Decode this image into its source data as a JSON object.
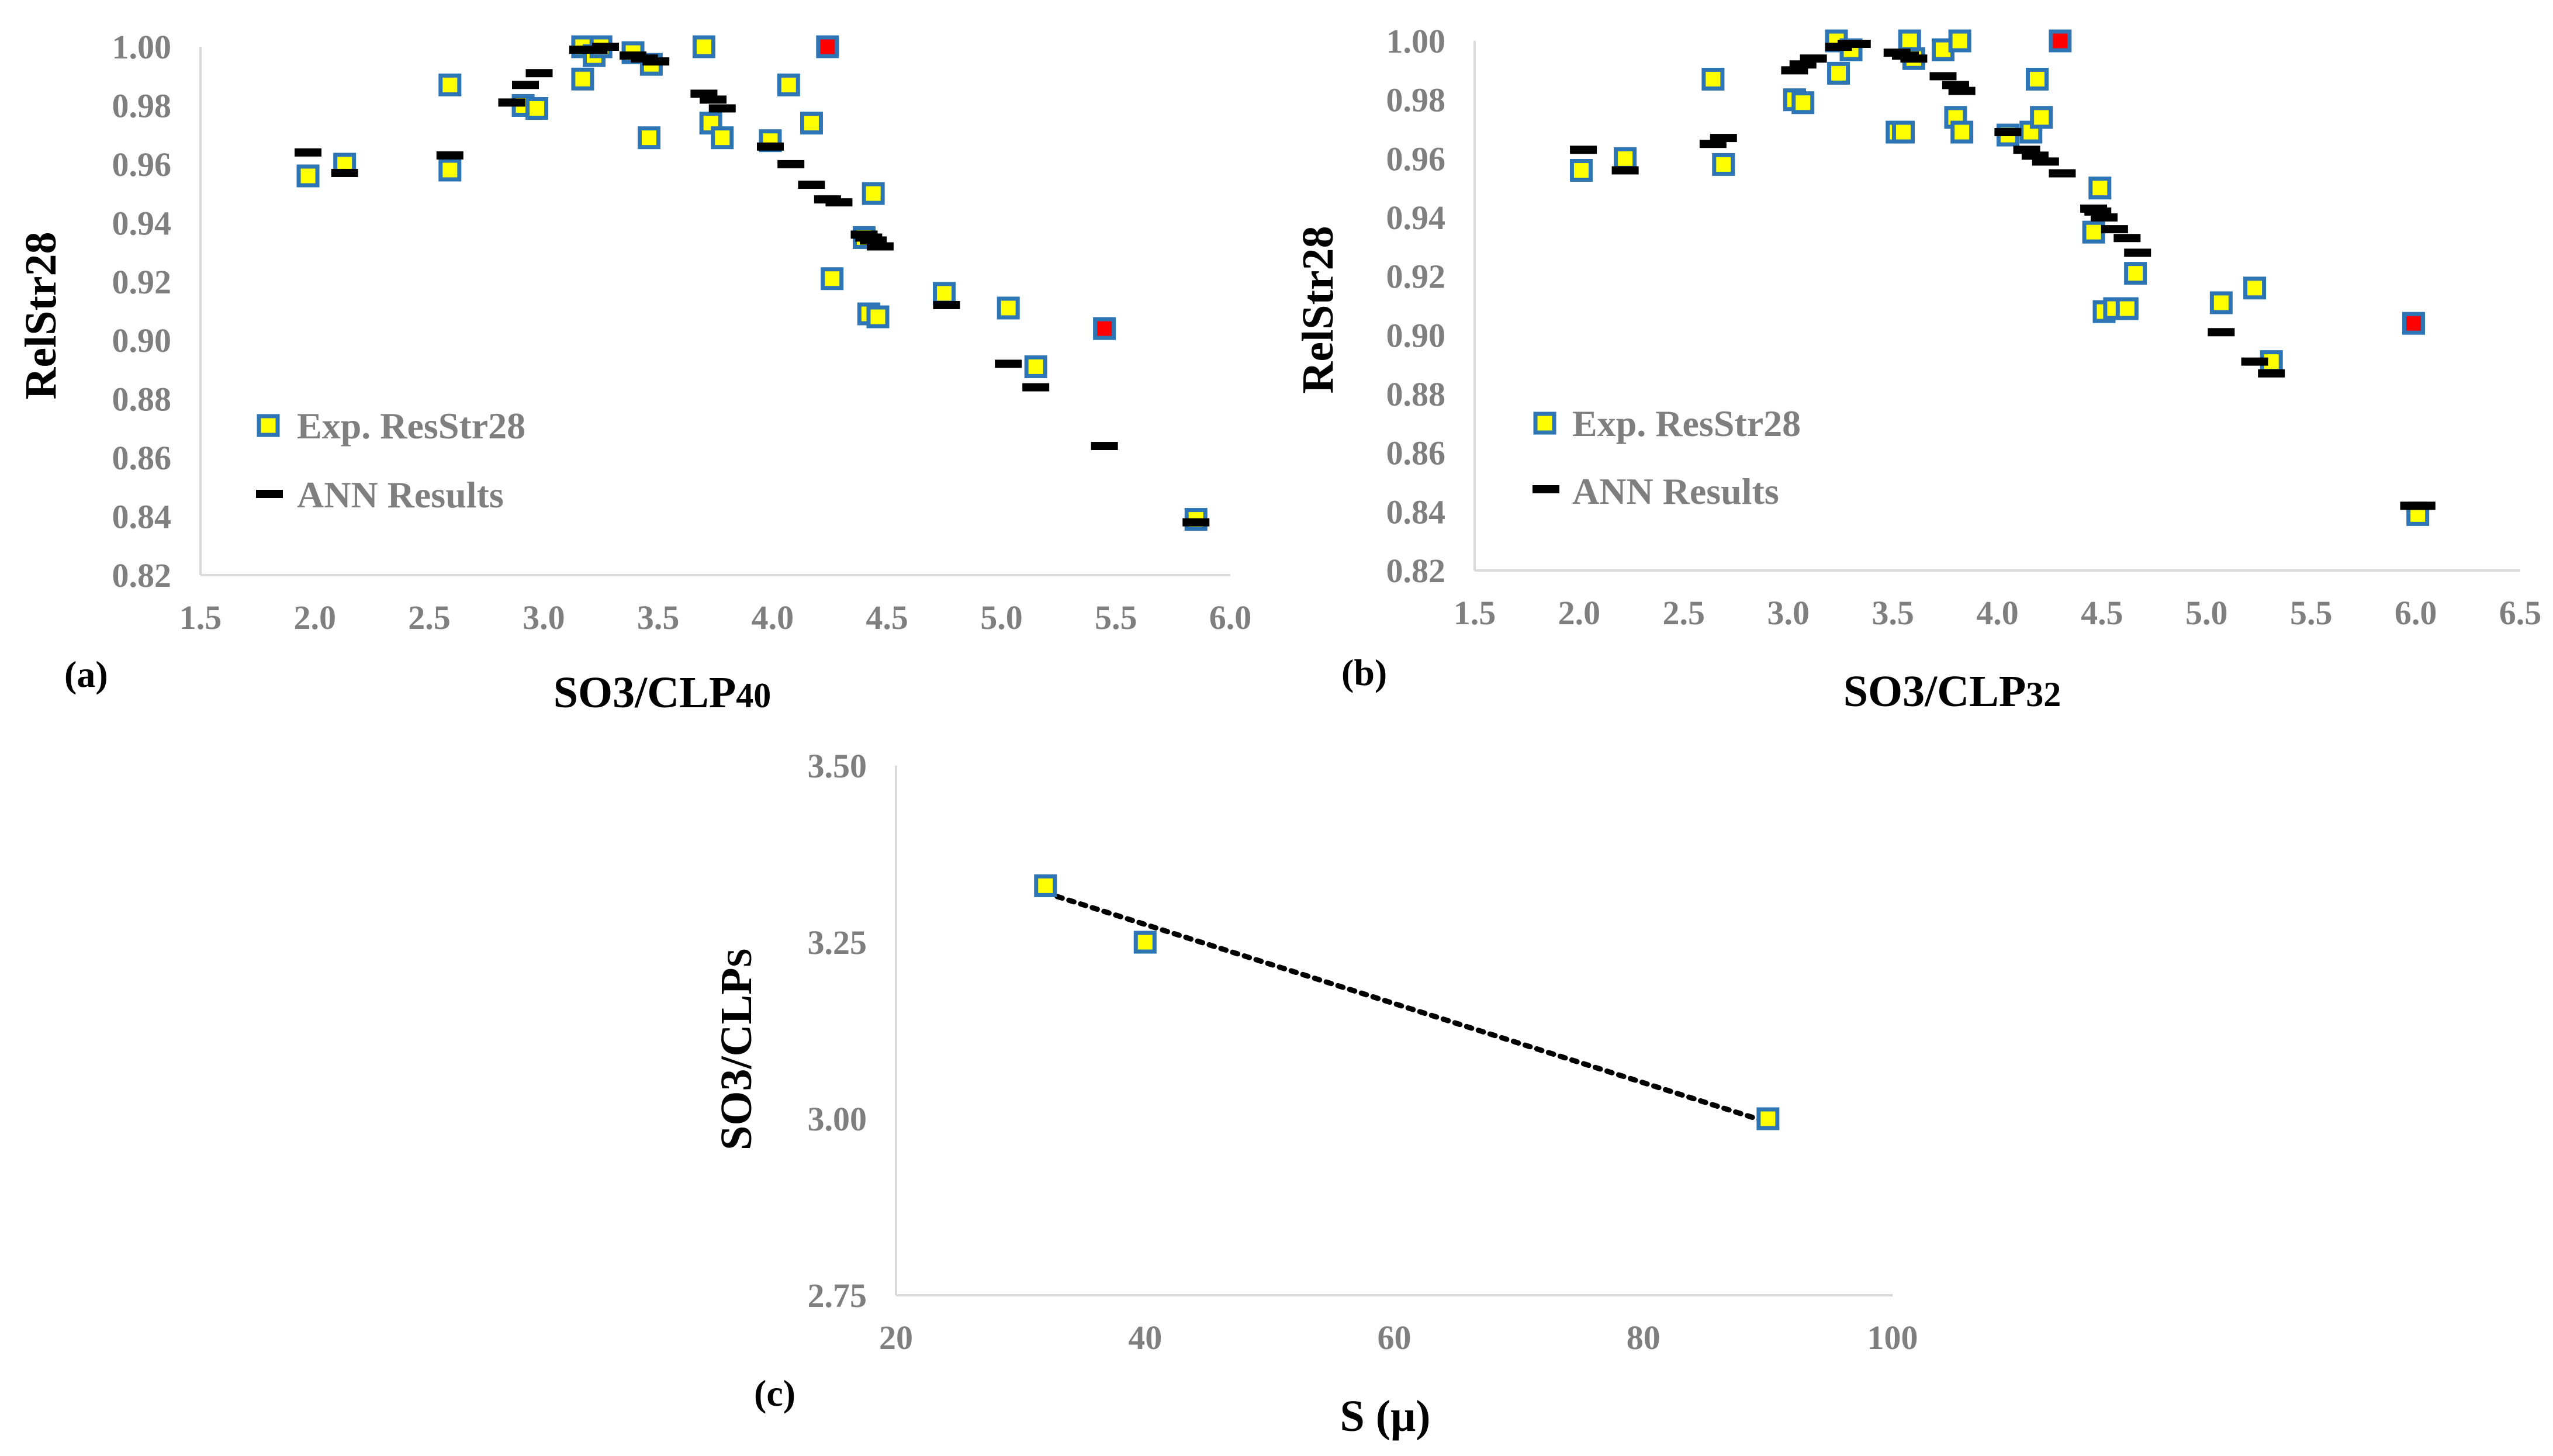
{
  "colors": {
    "marker_fill": "#ffff00",
    "marker_stroke": "#2e75b6",
    "highlight_fill": "#ff0000",
    "ann_color": "#000000",
    "axis_color": "#d9d9d9",
    "tick_color": "#7f7f7f"
  },
  "chart_data": [
    {
      "type": "scatter",
      "panel_label": "(a)",
      "xlabel_main": "SO3/CLP",
      "xlabel_sub": "40",
      "ylabel": "RelStr28",
      "xlim": [
        1.5,
        6.0
      ],
      "ylim": [
        0.82,
        1.0
      ],
      "x_ticks": [
        "1.5",
        "2.0",
        "2.5",
        "3.0",
        "3.5",
        "4.0",
        "4.5",
        "5.0",
        "5.5",
        "6.0"
      ],
      "y_ticks": [
        "0.82",
        "0.84",
        "0.86",
        "0.88",
        "0.90",
        "0.92",
        "0.94",
        "0.96",
        "0.98",
        "1.00"
      ],
      "legend": [
        "Exp. ResStr28",
        "ANN Results"
      ],
      "series": [
        {
          "name": "Exp. ResStr28",
          "points": [
            [
              1.97,
              0.956
            ],
            [
              2.13,
              0.96
            ],
            [
              2.59,
              0.958
            ],
            [
              2.59,
              0.987
            ],
            [
              2.91,
              0.98
            ],
            [
              2.97,
              0.979
            ],
            [
              3.17,
              0.989
            ],
            [
              3.17,
              1.0
            ],
            [
              3.22,
              0.997
            ],
            [
              3.25,
              1.0
            ],
            [
              3.39,
              0.998
            ],
            [
              3.46,
              0.969
            ],
            [
              3.47,
              0.994
            ],
            [
              3.7,
              1.0
            ],
            [
              3.73,
              0.974
            ],
            [
              3.78,
              0.969
            ],
            [
              3.99,
              0.968
            ],
            [
              4.07,
              0.987
            ],
            [
              4.17,
              0.974
            ],
            [
              4.26,
              0.921
            ],
            [
              4.4,
              0.935
            ],
            [
              4.42,
              0.909
            ],
            [
              4.44,
              0.95
            ],
            [
              4.46,
              0.908
            ],
            [
              4.75,
              0.916
            ],
            [
              5.03,
              0.911
            ],
            [
              5.15,
              0.891
            ],
            [
              5.85,
              0.839
            ]
          ],
          "highlight": [
            [
              4.24,
              1.0
            ],
            [
              5.45,
              0.904
            ]
          ]
        },
        {
          "name": "ANN Results",
          "points": [
            [
              1.97,
              0.964
            ],
            [
              2.13,
              0.957
            ],
            [
              2.59,
              0.963
            ],
            [
              2.86,
              0.981
            ],
            [
              2.92,
              0.987
            ],
            [
              2.98,
              0.991
            ],
            [
              3.17,
              0.999
            ],
            [
              3.22,
              0.999
            ],
            [
              3.27,
              1.0
            ],
            [
              3.39,
              0.997
            ],
            [
              3.44,
              0.996
            ],
            [
              3.49,
              0.995
            ],
            [
              3.7,
              0.984
            ],
            [
              3.74,
              0.982
            ],
            [
              3.78,
              0.979
            ],
            [
              3.99,
              0.966
            ],
            [
              4.08,
              0.96
            ],
            [
              4.17,
              0.953
            ],
            [
              4.24,
              0.948
            ],
            [
              4.29,
              0.947
            ],
            [
              4.4,
              0.936
            ],
            [
              4.42,
              0.935
            ],
            [
              4.44,
              0.934
            ],
            [
              4.47,
              0.932
            ],
            [
              4.76,
              0.912
            ],
            [
              5.03,
              0.892
            ],
            [
              5.15,
              0.884
            ],
            [
              5.45,
              0.864
            ],
            [
              5.85,
              0.838
            ]
          ]
        }
      ]
    },
    {
      "type": "scatter",
      "panel_label": "(b)",
      "xlabel_main": "SO3/CLP",
      "xlabel_sub": "32",
      "ylabel": "RelStr28",
      "xlim": [
        1.5,
        6.5
      ],
      "ylim": [
        0.82,
        1.0
      ],
      "x_ticks": [
        "1.5",
        "2.0",
        "2.5",
        "3.0",
        "3.5",
        "4.0",
        "4.5",
        "5.0",
        "5.5",
        "6.0",
        "6.5"
      ],
      "y_ticks": [
        "0.82",
        "0.84",
        "0.86",
        "0.88",
        "0.90",
        "0.92",
        "0.94",
        "0.96",
        "0.98",
        "1.00"
      ],
      "legend": [
        "Exp. ResStr28",
        "ANN Results"
      ],
      "series": [
        {
          "name": "Exp. ResStr28",
          "points": [
            [
              2.01,
              0.956
            ],
            [
              2.22,
              0.96
            ],
            [
              2.64,
              0.987
            ],
            [
              2.69,
              0.958
            ],
            [
              3.03,
              0.98
            ],
            [
              3.07,
              0.979
            ],
            [
              3.23,
              1.0
            ],
            [
              3.24,
              0.989
            ],
            [
              3.3,
              0.997
            ],
            [
              3.52,
              0.969
            ],
            [
              3.55,
              0.969
            ],
            [
              3.58,
              1.0
            ],
            [
              3.6,
              0.994
            ],
            [
              3.74,
              0.997
            ],
            [
              3.8,
              0.974
            ],
            [
              3.82,
              1.0
            ],
            [
              3.83,
              0.969
            ],
            [
              4.05,
              0.968
            ],
            [
              4.16,
              0.969
            ],
            [
              4.19,
              0.987
            ],
            [
              4.21,
              0.974
            ],
            [
              4.46,
              0.935
            ],
            [
              4.49,
              0.95
            ],
            [
              4.51,
              0.908
            ],
            [
              4.56,
              0.909
            ],
            [
              4.62,
              0.909
            ],
            [
              4.66,
              0.921
            ],
            [
              5.07,
              0.911
            ],
            [
              5.23,
              0.916
            ],
            [
              5.31,
              0.891
            ],
            [
              6.01,
              0.839
            ]
          ],
          "highlight": [
            [
              4.3,
              1.0
            ],
            [
              5.99,
              0.904
            ]
          ]
        },
        {
          "name": "ANN Results",
          "points": [
            [
              2.02,
              0.963
            ],
            [
              2.22,
              0.956
            ],
            [
              2.64,
              0.965
            ],
            [
              2.69,
              0.967
            ],
            [
              3.03,
              0.99
            ],
            [
              3.07,
              0.992
            ],
            [
              3.12,
              0.994
            ],
            [
              3.24,
              0.998
            ],
            [
              3.3,
              0.999
            ],
            [
              3.33,
              0.999
            ],
            [
              3.52,
              0.996
            ],
            [
              3.56,
              0.995
            ],
            [
              3.6,
              0.994
            ],
            [
              3.74,
              0.988
            ],
            [
              3.8,
              0.985
            ],
            [
              3.83,
              0.983
            ],
            [
              4.05,
              0.969
            ],
            [
              4.14,
              0.963
            ],
            [
              4.18,
              0.961
            ],
            [
              4.23,
              0.959
            ],
            [
              4.31,
              0.955
            ],
            [
              4.46,
              0.943
            ],
            [
              4.48,
              0.942
            ],
            [
              4.51,
              0.94
            ],
            [
              4.56,
              0.936
            ],
            [
              4.62,
              0.933
            ],
            [
              4.67,
              0.928
            ],
            [
              5.07,
              0.901
            ],
            [
              5.23,
              0.891
            ],
            [
              5.31,
              0.887
            ],
            [
              5.99,
              0.842
            ],
            [
              6.03,
              0.842
            ]
          ]
        }
      ]
    },
    {
      "type": "scatter",
      "panel_label": "(c)",
      "xlabel_main": "S (μ)",
      "ylabel_main": "SO3/CLP",
      "ylabel_sub": "S",
      "xlim": [
        20,
        100
      ],
      "ylim": [
        2.75,
        3.5
      ],
      "x_ticks": [
        "20",
        "40",
        "60",
        "80",
        "100"
      ],
      "y_ticks": [
        "2.75",
        "3.00",
        "3.25",
        "3.50"
      ],
      "series": [
        {
          "name": "SO3/CLPs",
          "points": [
            [
              32,
              3.33
            ],
            [
              40,
              3.25
            ],
            [
              90,
              3.0
            ]
          ]
        }
      ],
      "trendline": [
        [
          32,
          3.32
        ],
        [
          90,
          2.995
        ]
      ]
    }
  ]
}
